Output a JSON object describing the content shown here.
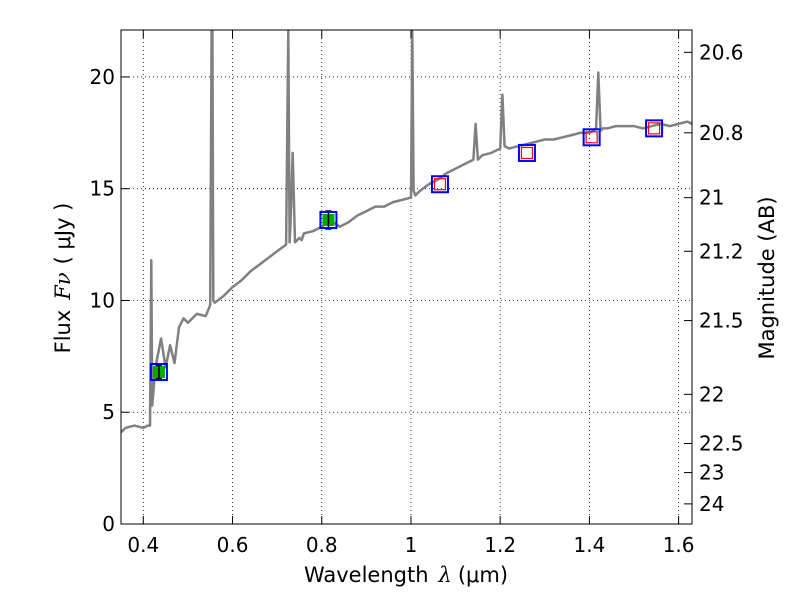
{
  "chart_data": {
    "type": "line",
    "title": "",
    "xlabel": "Wavelength",
    "xlabel_symbol": "λ",
    "xlabel_unit": "(μm)",
    "ylabel": "Flux",
    "ylabel_symbol": "Fν",
    "ylabel_unit": "( μJy )",
    "y2label": "Magnitude (AB)",
    "xlim": [
      0.35,
      1.63
    ],
    "ylim": [
      0,
      22.1
    ],
    "grid": true,
    "legend": "none",
    "x_ticks": [
      0.4,
      0.6,
      0.8,
      1.0,
      1.2,
      1.4,
      1.6
    ],
    "x_tick_labels": [
      "0.4",
      "0.6",
      "0.8",
      "1",
      "1.2",
      "1.4",
      "1.6"
    ],
    "y_ticks": [
      0,
      5,
      10,
      15,
      20
    ],
    "y_tick_labels": [
      "0",
      "5",
      "10",
      "15",
      "20"
    ],
    "y2_ticks": [
      {
        "label": "20.6",
        "flux": 21.1
      },
      {
        "label": "20.8",
        "flux": 17.5
      },
      {
        "label": "21",
        "flux": 14.6
      },
      {
        "label": "21.2",
        "flux": 12.2
      },
      {
        "label": "21.5",
        "flux": 9.1
      },
      {
        "label": "22",
        "flux": 5.8
      },
      {
        "label": "22.5",
        "flux": 3.6
      },
      {
        "label": "23",
        "flux": 2.3
      },
      {
        "label": "24",
        "flux": 0.9
      }
    ],
    "series": [
      {
        "role": "model-spectrum",
        "color": "#808080",
        "x": [
          0.35,
          0.36,
          0.38,
          0.4,
          0.41,
          0.415,
          0.418,
          0.42,
          0.425,
          0.43,
          0.44,
          0.45,
          0.46,
          0.47,
          0.48,
          0.49,
          0.5,
          0.52,
          0.54,
          0.55,
          0.553,
          0.555,
          0.557,
          0.56,
          0.58,
          0.6,
          0.62,
          0.64,
          0.66,
          0.68,
          0.7,
          0.72,
          0.725,
          0.728,
          0.73,
          0.735,
          0.74,
          0.75,
          0.755,
          0.76,
          0.78,
          0.8,
          0.82,
          0.84,
          0.86,
          0.88,
          0.9,
          0.92,
          0.94,
          0.96,
          0.98,
          1.0,
          1.003,
          1.006,
          1.01,
          1.02,
          1.04,
          1.06,
          1.08,
          1.1,
          1.12,
          1.14,
          1.145,
          1.15,
          1.16,
          1.18,
          1.2,
          1.205,
          1.21,
          1.22,
          1.24,
          1.26,
          1.28,
          1.3,
          1.32,
          1.34,
          1.36,
          1.38,
          1.4,
          1.41,
          1.415,
          1.42,
          1.425,
          1.43,
          1.44,
          1.46,
          1.48,
          1.5,
          1.52,
          1.54,
          1.56,
          1.58,
          1.6,
          1.62,
          1.63
        ],
        "y": [
          4.1,
          4.3,
          4.4,
          4.3,
          4.4,
          4.4,
          11.8,
          5.3,
          6.5,
          7.3,
          8.3,
          7.0,
          8.0,
          7.2,
          8.8,
          9.2,
          9.0,
          9.4,
          9.3,
          9.8,
          22.1,
          22.1,
          10.0,
          9.9,
          10.2,
          10.6,
          10.9,
          11.3,
          11.6,
          11.9,
          12.2,
          12.5,
          22.1,
          12.6,
          13.4,
          16.6,
          12.6,
          12.8,
          12.7,
          13.0,
          13.1,
          13.3,
          13.6,
          13.3,
          13.5,
          13.8,
          14.0,
          14.2,
          14.2,
          14.4,
          14.5,
          14.6,
          22.1,
          14.9,
          14.7,
          14.9,
          15.2,
          15.4,
          15.7,
          15.9,
          16.1,
          16.3,
          17.9,
          16.3,
          16.5,
          16.6,
          16.8,
          19.2,
          16.9,
          16.8,
          16.9,
          17.0,
          17.1,
          17.2,
          17.2,
          17.3,
          17.4,
          17.5,
          17.5,
          17.6,
          17.7,
          20.2,
          17.6,
          17.7,
          17.7,
          17.8,
          17.8,
          17.8,
          17.7,
          17.8,
          17.9,
          17.8,
          17.9,
          18.0,
          17.9
        ]
      }
    ],
    "photometry": [
      {
        "role": "observed-point",
        "x": 0.435,
        "y": 6.8,
        "yerr": 0.3,
        "fill": "#00aa00",
        "box": "#0000ff"
      },
      {
        "role": "observed-point",
        "x": 0.815,
        "y": 13.6,
        "yerr": 0.4,
        "fill": "#00aa00",
        "box": "#0000ff"
      },
      {
        "role": "model-point",
        "x": 1.065,
        "y": 15.2,
        "fill": "none",
        "stroke": "#ff0000",
        "box": "#0000ff"
      },
      {
        "role": "model-point",
        "x": 1.26,
        "y": 16.6,
        "fill": "none",
        "stroke": "#ff0000",
        "box": "#0000ff"
      },
      {
        "role": "model-point",
        "x": 1.405,
        "y": 17.3,
        "fill": "none",
        "stroke": "#ff0000",
        "box": "#0000ff"
      },
      {
        "role": "model-point",
        "x": 1.545,
        "y": 17.7,
        "fill": "none",
        "stroke": "#ff0000",
        "box": "#0000ff"
      }
    ]
  }
}
